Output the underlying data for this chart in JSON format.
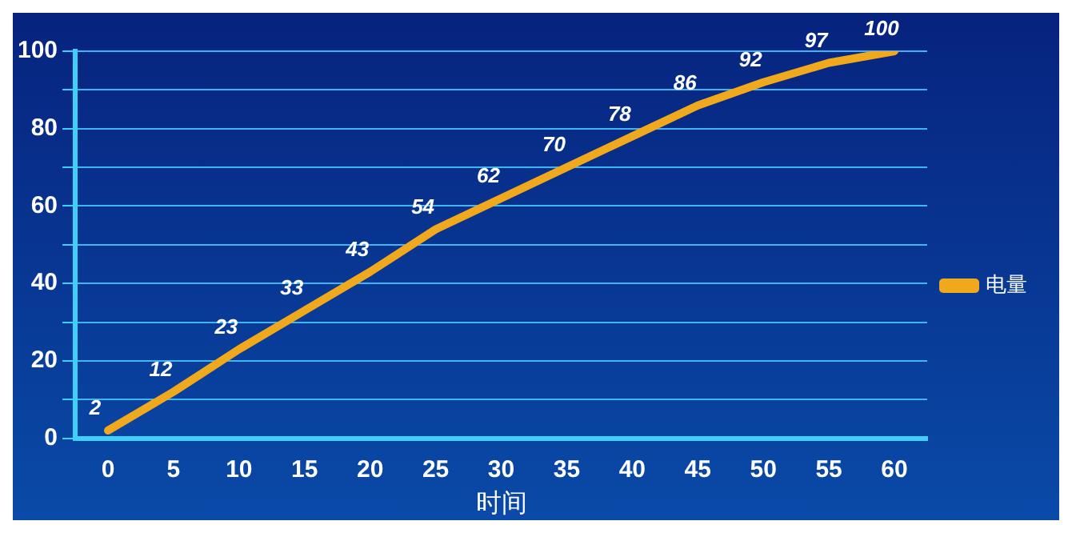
{
  "chart_data": {
    "type": "line",
    "xlabel": "时间",
    "categories": [
      "0",
      "5",
      "10",
      "15",
      "20",
      "25",
      "30",
      "35",
      "40",
      "45",
      "50",
      "55",
      "60"
    ],
    "series": [
      {
        "name": "电量",
        "color": "#f0a81c",
        "values": [
          2,
          12,
          23,
          33,
          43,
          54,
          62,
          70,
          78,
          86,
          92,
          97,
          100
        ]
      }
    ],
    "ylim": [
      0,
      100
    ],
    "yticks": [
      0,
      {
        "value": 10,
        "label": null
      },
      20,
      {
        "value": 30,
        "label": null
      },
      40,
      {
        "value": 50,
        "label": null
      },
      60,
      {
        "value": 70,
        "label": null
      },
      80,
      {
        "value": 90,
        "label": null
      },
      100
    ],
    "grid": "y",
    "legend": "right",
    "marker": "none",
    "line_style": "solid",
    "data_labels": true
  }
}
